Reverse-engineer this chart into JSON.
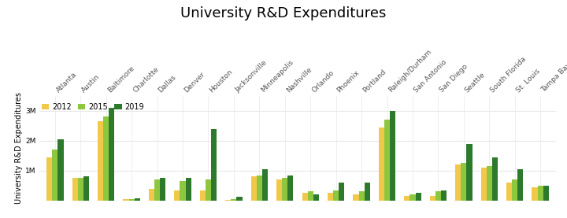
{
  "title": "University R&D Expenditures",
  "ylabel": "University R&D Expenditures",
  "legend_labels": [
    "2012",
    "2015",
    "2019"
  ],
  "colors": [
    "#f2c84b",
    "#8dc63f",
    "#2d7a2d"
  ],
  "categories": [
    "Atlanta",
    "Austin",
    "Baltimore",
    "Charlotte",
    "Dallas",
    "Denver",
    "Houston",
    "Jacksonville",
    "Minneapolis",
    "Nashville",
    "Orlando",
    "Phoenix",
    "Portland",
    "Raleigh/Durham",
    "San Antonio",
    "San Diego",
    "Seattle",
    "South Florida",
    "St. Louis",
    "Tampa Bay"
  ],
  "values_2012": [
    1450000,
    750000,
    2650000,
    50000,
    400000,
    350000,
    350000,
    30000,
    800000,
    700000,
    250000,
    250000,
    200000,
    2450000,
    150000,
    150000,
    1200000,
    1100000,
    600000,
    450000
  ],
  "values_2015": [
    1700000,
    750000,
    2800000,
    60000,
    700000,
    650000,
    700000,
    60000,
    850000,
    750000,
    300000,
    350000,
    300000,
    2700000,
    200000,
    300000,
    1250000,
    1150000,
    700000,
    500000
  ],
  "values_2019": [
    2050000,
    800000,
    3100000,
    80000,
    750000,
    750000,
    2400000,
    130000,
    1050000,
    850000,
    200000,
    600000,
    600000,
    3000000,
    250000,
    350000,
    1900000,
    1450000,
    1050000,
    500000
  ],
  "ylim": [
    0,
    3500000
  ],
  "yticks": [
    0,
    1000000,
    2000000,
    3000000
  ],
  "ytick_labels": [
    "",
    "1M",
    "2M",
    "3M"
  ],
  "background_color": "#ffffff",
  "grid_color": "#e8e8e8",
  "title_fontsize": 13,
  "ylabel_fontsize": 7,
  "tick_fontsize": 6.5,
  "legend_fontsize": 7,
  "bar_width": 0.22
}
